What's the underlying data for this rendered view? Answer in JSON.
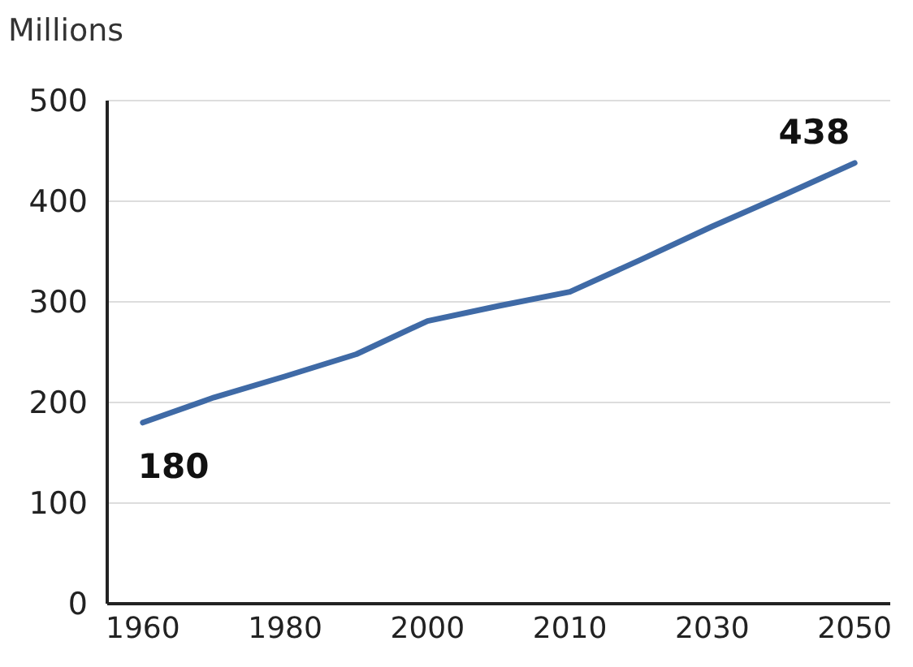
{
  "chart_data": {
    "type": "line",
    "ylabel": "Millions",
    "categories": [
      "1960",
      null,
      "1980",
      null,
      "2000",
      null,
      "2010",
      null,
      "2030",
      null,
      "2050"
    ],
    "series": [
      {
        "color": "#3f6aa6",
        "values": [
          180,
          205,
          226,
          248,
          281,
          296,
          310,
          342,
          375,
          406,
          438
        ],
        "value_labels": [
          "180",
          null,
          null,
          null,
          null,
          null,
          null,
          null,
          null,
          null,
          "438"
        ]
      }
    ],
    "ylim": [
      0,
      500
    ],
    "yticks": [
      0,
      100,
      200,
      300,
      400,
      500
    ],
    "grid": "y",
    "legend": false,
    "marker": "none",
    "line_style": "solid"
  }
}
